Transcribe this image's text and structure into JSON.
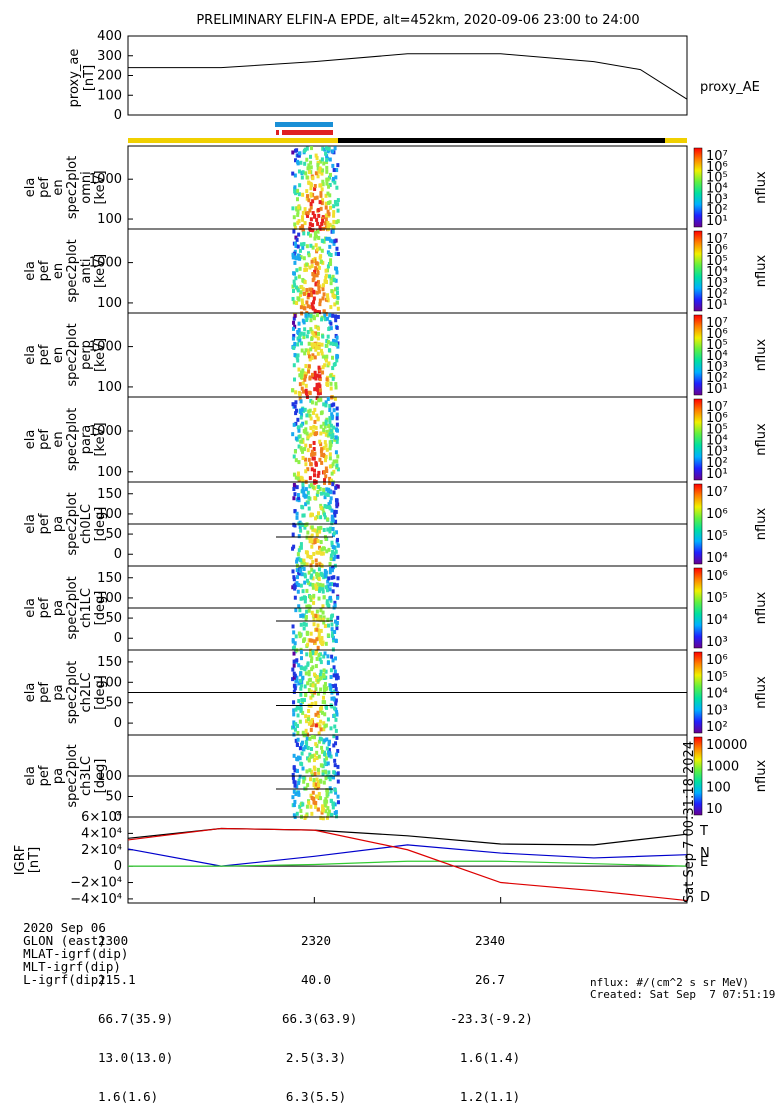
{
  "title": "PRELIMINARY ELFIN-A EPDE, alt=452km, 2020-09-06 23:00 to 24:00",
  "ae_panel": {
    "ylabel": [
      "proxy_ae",
      "[nT]"
    ],
    "yticks": [
      "400",
      "300",
      "200",
      "100",
      "0"
    ],
    "legend": "proxy_AE"
  },
  "spec_panels": [
    {
      "ylabel": [
        "ela",
        "pef",
        "en",
        "spec2plot",
        "omni",
        "[keV]"
      ],
      "yticks": [
        "1000",
        "100"
      ]
    },
    {
      "ylabel": [
        "ela",
        "pef",
        "en",
        "spec2plot",
        "anti",
        "[keV]"
      ],
      "yticks": [
        "1000",
        "100"
      ]
    },
    {
      "ylabel": [
        "ela",
        "pef",
        "en",
        "spec2plot",
        "perp",
        "[keV]"
      ],
      "yticks": [
        "1000",
        "100"
      ]
    },
    {
      "ylabel": [
        "ela",
        "pef",
        "en",
        "spec2plot",
        "para",
        "[keV]"
      ],
      "yticks": [
        "1000",
        "100"
      ]
    },
    {
      "ylabel": [
        "ela",
        "pef",
        "pa",
        "spec2plot",
        "ch0LC",
        "[deg]"
      ],
      "yticks": [
        "150",
        "100",
        "50",
        "0"
      ]
    },
    {
      "ylabel": [
        "ela",
        "pef",
        "pa",
        "spec2plot",
        "ch1LC",
        "[deg]"
      ],
      "yticks": [
        "150",
        "100",
        "50",
        "0"
      ]
    },
    {
      "ylabel": [
        "ela",
        "pef",
        "pa",
        "spec2plot",
        "ch2LC",
        "[deg]"
      ],
      "yticks": [
        "150",
        "100",
        "50",
        "0"
      ]
    },
    {
      "ylabel": [
        "ela",
        "pef",
        "pa",
        "spec2plot",
        "ch3LC",
        "[deg]"
      ],
      "yticks": [
        "100",
        "50",
        "0"
      ]
    }
  ],
  "colorbars": [
    {
      "labels": [
        "10⁷",
        "10⁶",
        "10⁵",
        "10⁴",
        "10³",
        "10²",
        "10¹"
      ],
      "unit": "nflux"
    },
    {
      "labels": [
        "10⁷",
        "10⁶",
        "10⁵",
        "10⁴",
        "10³",
        "10²",
        "10¹"
      ],
      "unit": "nflux"
    },
    {
      "labels": [
        "10⁷",
        "10⁶",
        "10⁵",
        "10⁴",
        "10³",
        "10²",
        "10¹"
      ],
      "unit": "nflux"
    },
    {
      "labels": [
        "10⁷",
        "10⁶",
        "10⁵",
        "10⁴",
        "10³",
        "10²",
        "10¹"
      ],
      "unit": "nflux"
    },
    {
      "labels": [
        "10⁷",
        "10⁶",
        "10⁵",
        "10⁴"
      ],
      "unit": "nflux"
    },
    {
      "labels": [
        "10⁶",
        "10⁵",
        "10⁴",
        "10³"
      ],
      "unit": "nflux"
    },
    {
      "labels": [
        "10⁶",
        "10⁵",
        "10⁴",
        "10³",
        "10²"
      ],
      "unit": "nflux"
    },
    {
      "labels": [
        "10000",
        "1000",
        "100",
        "10"
      ],
      "unit": "nflux"
    }
  ],
  "igrf_panel": {
    "ylabel": [
      "IGRF",
      "[nT]"
    ],
    "yticks": [
      "6×10⁴",
      "4×10⁴",
      "2×10⁴",
      "0",
      "−2×10⁴",
      "−4×10⁴"
    ],
    "legend": [
      "T",
      "N",
      "E",
      "D"
    ],
    "side_stamp": "Sat Sep  7 00:31:18 2024"
  },
  "chart_data": {
    "type": "line",
    "title": "PRELIMINARY ELFIN-A EPDE, alt=452km, 2020-09-06 23:00 to 24:00",
    "x_ticks": [
      "2300",
      "2320",
      "2340"
    ],
    "proxy_ae": {
      "x_min": [
        0,
        10,
        20,
        30,
        40,
        50,
        55,
        60
      ],
      "values": [
        240,
        240,
        270,
        310,
        310,
        270,
        230,
        80
      ],
      "ylim": [
        0,
        400
      ]
    },
    "igrf": {
      "x_min": [
        0,
        10,
        20,
        30,
        40,
        50,
        60
      ],
      "series": [
        {
          "name": "T",
          "values": [
            34000,
            46000,
            44000,
            37000,
            27000,
            26000,
            39000
          ]
        },
        {
          "name": "N",
          "values": [
            21000,
            0,
            12000,
            26000,
            16000,
            10000,
            14000
          ]
        },
        {
          "name": "E",
          "values": [
            0,
            0,
            2000,
            6000,
            6000,
            3000,
            0
          ]
        },
        {
          "name": "D",
          "values": [
            32000,
            46000,
            44000,
            20000,
            -20000,
            -30000,
            -42000
          ]
        }
      ],
      "ylim": [
        -45000,
        60000
      ]
    }
  },
  "footer": {
    "rows": [
      {
        "label": "2020 Sep 06",
        "v1": "2300",
        "v2": "2320",
        "v3": "2340"
      },
      {
        "label": "GLON (east)",
        "v1": "215.1",
        "v2": "40.0",
        "v3": "26.7"
      },
      {
        "label": "MLAT-igrf(dip)",
        "v1": "66.7(35.9)",
        "v2": "66.3(63.9)",
        "v3": "-23.3(-9.2)"
      },
      {
        "label": "MLT-igrf(dip)",
        "v1": "13.0(13.0)",
        "v2": "2.5(3.3)",
        "v3": "1.6(1.4)"
      },
      {
        "label": "L-igrf(dip)",
        "v1": "1.6(1.6)",
        "v2": "6.3(5.5)",
        "v3": "1.2(1.1)"
      }
    ],
    "unit_note": "nflux: #/(cm^2 s sr MeV)",
    "created": "Created: Sat Sep  7 07:51:19 2024"
  },
  "colors": {
    "yellow": "#f0d000",
    "black": "#000000",
    "blue": "#1a8fd6",
    "red": "#e02020",
    "T": "#000000",
    "N": "#0000cc",
    "E": "#33cc33",
    "D": "#dd0000"
  }
}
